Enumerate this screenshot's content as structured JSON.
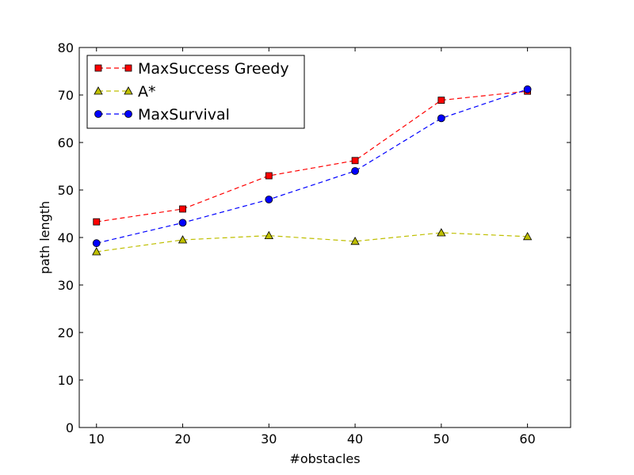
{
  "chart_data": {
    "type": "line",
    "title": "",
    "xlabel": "#obstacles",
    "ylabel": "path length",
    "x": [
      10,
      20,
      30,
      40,
      50,
      60
    ],
    "xlim": [
      8,
      65
    ],
    "ylim": [
      0,
      80
    ],
    "xticks": [
      10,
      20,
      30,
      40,
      50,
      60
    ],
    "yticks": [
      0,
      10,
      20,
      30,
      40,
      50,
      60,
      70,
      80
    ],
    "grid": false,
    "legend_position": "top-left",
    "series": [
      {
        "name": "MaxSuccess Greedy",
        "values": [
          43.3,
          46.0,
          53.0,
          56.2,
          68.9,
          70.8
        ],
        "color": "#ff0000",
        "marker": "square"
      },
      {
        "name": "A*",
        "values": [
          37.0,
          39.5,
          40.4,
          39.2,
          41.0,
          40.2
        ],
        "color": "#bfbf00",
        "marker": "triangle"
      },
      {
        "name": "MaxSurvival",
        "values": [
          38.8,
          43.1,
          48.0,
          54.0,
          65.1,
          71.2
        ],
        "color": "#0000ff",
        "marker": "circle"
      }
    ]
  }
}
